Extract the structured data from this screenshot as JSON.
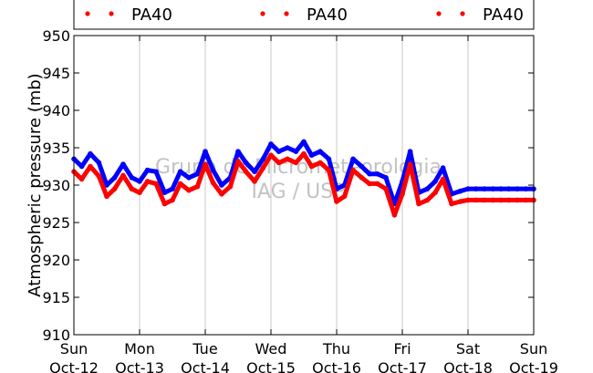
{
  "chart_data": {
    "type": "line",
    "title": "",
    "xlabel": "",
    "ylabel": "Atmospheric pressure (mb)",
    "ylim": [
      910,
      950
    ],
    "yticks": [
      910,
      915,
      920,
      925,
      930,
      935,
      940,
      945,
      950
    ],
    "xlim": [
      "2014-10-12",
      "2014-10-19"
    ],
    "xticks": [
      {
        "day": 0,
        "line1": "Sun",
        "line2": "Oct-12"
      },
      {
        "day": 1,
        "line1": "Mon",
        "line2": "Oct-13"
      },
      {
        "day": 2,
        "line1": "Tue",
        "line2": "Oct-14"
      },
      {
        "day": 3,
        "line1": "Wed",
        "line2": "Oct-15"
      },
      {
        "day": 4,
        "line1": "Thu",
        "line2": "Oct-16"
      },
      {
        "day": 5,
        "line1": "Fri",
        "line2": "Oct-17"
      },
      {
        "day": 6,
        "line1": "Sat",
        "line2": "Oct-18"
      },
      {
        "day": 7,
        "line1": "Sun",
        "line2": "Oct-19"
      }
    ],
    "grid": "vertical",
    "legend": {
      "placement": "top",
      "entries": [
        {
          "label": "PA40",
          "color": "#ff0000"
        },
        {
          "label": "PA40",
          "color": "#ff0000"
        },
        {
          "label": "PA40",
          "color": "#ff0000"
        }
      ]
    },
    "watermark": [
      "Grupo de Micrometeorologia",
      "IAG / USP"
    ],
    "series": [
      {
        "color": "#0000ff",
        "x": [
          0,
          0.12,
          0.25,
          0.38,
          0.5,
          0.62,
          0.75,
          0.88,
          1.0,
          1.12,
          1.25,
          1.38,
          1.5,
          1.62,
          1.75,
          1.88,
          2.0,
          2.12,
          2.25,
          2.38,
          2.5,
          2.62,
          2.75,
          2.88,
          3.0,
          3.12,
          3.25,
          3.38,
          3.5,
          3.62,
          3.75,
          3.88,
          4.0,
          4.12,
          4.25,
          4.38,
          4.5,
          4.62,
          4.75,
          4.88,
          5.0,
          5.12,
          5.25,
          5.38,
          5.5,
          5.62,
          5.75,
          5.88,
          6.0,
          6.12,
          6.25,
          6.38,
          6.5,
          6.62,
          6.75,
          6.88,
          7.0
        ],
        "y": [
          933.5,
          932.5,
          934.2,
          933.0,
          930.0,
          931.0,
          932.8,
          931.0,
          930.5,
          932.0,
          931.8,
          929.0,
          929.5,
          931.8,
          931.0,
          931.5,
          934.5,
          932.0,
          930.0,
          931.0,
          934.5,
          933.0,
          931.8,
          933.5,
          935.5,
          934.5,
          935.0,
          934.5,
          935.8,
          934.0,
          934.5,
          933.5,
          929.5,
          930.0,
          933.5,
          932.5,
          931.5,
          931.5,
          931.0,
          927.5,
          930.5,
          934.5,
          929.0,
          929.5,
          930.5,
          932.3,
          928.8,
          929.2,
          929.5,
          929.5,
          929.5,
          929.5,
          929.5,
          929.5,
          929.5,
          929.5,
          929.5
        ]
      },
      {
        "color": "#ff0000",
        "x": [
          0,
          0.12,
          0.25,
          0.38,
          0.5,
          0.62,
          0.75,
          0.88,
          1.0,
          1.12,
          1.25,
          1.38,
          1.5,
          1.62,
          1.75,
          1.88,
          2.0,
          2.12,
          2.25,
          2.38,
          2.5,
          2.62,
          2.75,
          2.88,
          3.0,
          3.12,
          3.25,
          3.38,
          3.5,
          3.62,
          3.75,
          3.88,
          4.0,
          4.12,
          4.25,
          4.38,
          4.5,
          4.62,
          4.75,
          4.88,
          5.0,
          5.12,
          5.25,
          5.38,
          5.5,
          5.62,
          5.75,
          5.88,
          6.0,
          6.12,
          6.25,
          6.38,
          6.5,
          6.62,
          6.75,
          6.88,
          7.0
        ],
        "y": [
          931.8,
          930.8,
          932.5,
          931.2,
          928.5,
          929.5,
          931.3,
          929.5,
          929.0,
          930.5,
          930.2,
          927.5,
          928.0,
          930.2,
          929.3,
          929.8,
          932.8,
          930.3,
          928.8,
          929.8,
          933.2,
          931.8,
          930.5,
          932.3,
          934.0,
          933.0,
          933.5,
          933.0,
          934.2,
          932.5,
          933.0,
          932.0,
          927.8,
          928.5,
          932.0,
          931.0,
          930.2,
          930.2,
          929.5,
          926.0,
          928.8,
          932.8,
          927.5,
          928.0,
          929.0,
          930.8,
          927.5,
          927.8,
          928.0,
          928.0,
          928.0,
          928.0,
          928.0,
          928.0,
          928.0,
          928.0,
          928.0
        ]
      }
    ]
  }
}
